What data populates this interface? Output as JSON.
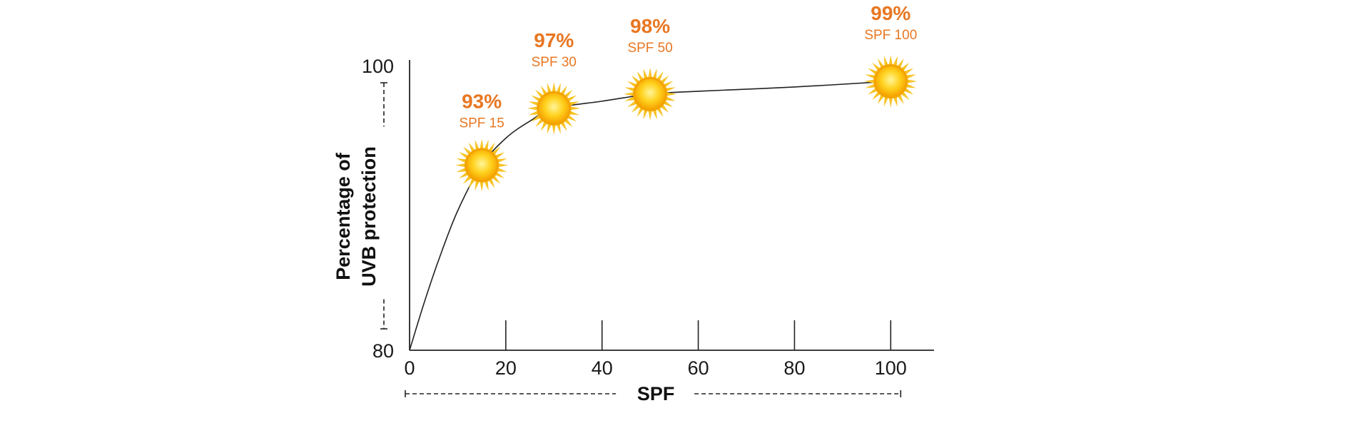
{
  "chart_data": {
    "type": "line",
    "xlabel": "SPF",
    "ylabel_line1": "Percentage of",
    "ylabel_line2": "UVB protection",
    "xlim": [
      0,
      109
    ],
    "ylim": [
      80,
      100
    ],
    "x_ticks": [
      0,
      20,
      40,
      60,
      80,
      100
    ],
    "x_tick_labels": [
      "0",
      "20",
      "40",
      "60",
      "80",
      "100"
    ],
    "y_ticks": [
      80,
      100
    ],
    "y_tick_labels": [
      "80",
      "100"
    ],
    "grid": false,
    "series": [
      {
        "x": [
          0,
          3,
          6,
          10,
          15,
          20,
          25,
          30,
          40,
          50,
          60,
          80,
          100
        ],
        "y": [
          80,
          83.3,
          86.3,
          89.8,
          93,
          94.9,
          96.1,
          97,
          97.5,
          98,
          98.2,
          98.5,
          98.9
        ]
      }
    ],
    "points": [
      {
        "x": 15,
        "y": 93,
        "pct": "93%",
        "spf": "SPF 15"
      },
      {
        "x": 30,
        "y": 97,
        "pct": "97%",
        "spf": "SPF 30"
      },
      {
        "x": 50,
        "y": 98,
        "pct": "98%",
        "spf": "SPF 50"
      },
      {
        "x": 100,
        "y": 99,
        "pct": "99%",
        "spf": "SPF 100"
      }
    ],
    "colors": {
      "label": "#e87722",
      "sun_core": "#fbb714",
      "sun_core_light": "#fff176",
      "sun_rays": "#f7c325",
      "line": "#222222",
      "axis": "#222222"
    }
  }
}
